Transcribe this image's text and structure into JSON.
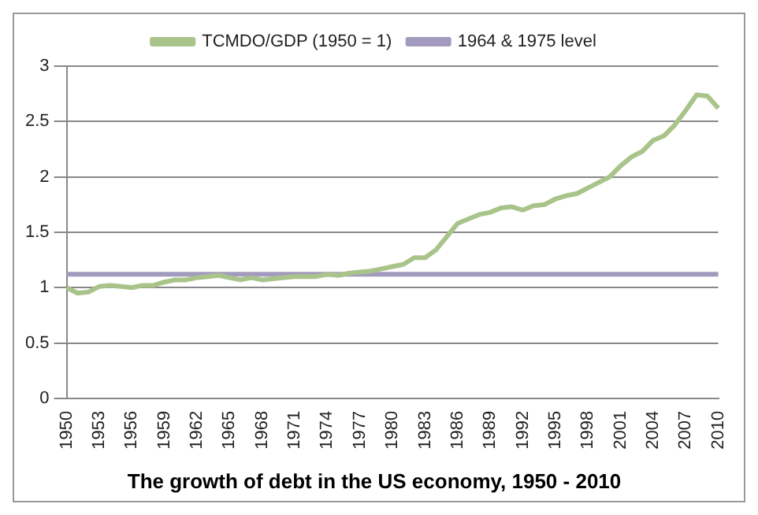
{
  "chart_data": {
    "type": "line",
    "title": "The growth of debt in the US economy, 1950 - 2010",
    "categories": [
      "1950",
      null,
      null,
      "1953",
      null,
      null,
      "1956",
      null,
      null,
      "1959",
      null,
      null,
      "1962",
      null,
      null,
      "1965",
      null,
      null,
      "1968",
      null,
      null,
      "1971",
      null,
      null,
      "1974",
      null,
      null,
      "1977",
      null,
      null,
      "1980",
      null,
      null,
      "1983",
      null,
      null,
      "1986",
      null,
      null,
      "1989",
      null,
      null,
      "1992",
      null,
      null,
      "1995",
      null,
      null,
      "1998",
      null,
      null,
      "2001",
      null,
      null,
      "2004",
      null,
      null,
      "2007",
      null,
      null,
      "2010"
    ],
    "series": [
      {
        "name": "TCMDO/GDP (1950 = 1)",
        "color": "#a9c48a",
        "values": [
          1.0,
          0.95,
          0.96,
          1.01,
          1.02,
          1.01,
          1.0,
          1.02,
          1.02,
          1.05,
          1.07,
          1.07,
          1.09,
          1.1,
          1.11,
          1.09,
          1.07,
          1.09,
          1.07,
          1.08,
          1.09,
          1.1,
          1.1,
          1.1,
          1.12,
          1.11,
          1.13,
          1.14,
          1.15,
          1.17,
          1.19,
          1.21,
          1.27,
          1.27,
          1.34,
          1.46,
          1.58,
          1.62,
          1.66,
          1.68,
          1.72,
          1.73,
          1.7,
          1.74,
          1.75,
          1.8,
          1.83,
          1.85,
          1.9,
          1.95,
          2.0,
          2.1,
          2.18,
          2.23,
          2.33,
          2.37,
          2.47,
          2.6,
          2.74,
          2.73,
          2.62
        ]
      },
      {
        "name": "1964 & 1975 level",
        "color": "#a39bbd",
        "values": [
          1.12,
          1.12,
          1.12,
          1.12,
          1.12,
          1.12,
          1.12,
          1.12,
          1.12,
          1.12,
          1.12,
          1.12,
          1.12,
          1.12,
          1.12,
          1.12,
          1.12,
          1.12,
          1.12,
          1.12,
          1.12,
          1.12,
          1.12,
          1.12,
          1.12,
          1.12,
          1.12,
          1.12,
          1.12,
          1.12,
          1.12,
          1.12,
          1.12,
          1.12,
          1.12,
          1.12,
          1.12,
          1.12,
          1.12,
          1.12,
          1.12,
          1.12,
          1.12,
          1.12,
          1.12,
          1.12,
          1.12,
          1.12,
          1.12,
          1.12,
          1.12,
          1.12,
          1.12,
          1.12,
          1.12,
          1.12,
          1.12,
          1.12,
          1.12,
          1.12,
          1.12
        ]
      }
    ],
    "ylim": [
      0,
      3
    ],
    "yticks": [
      0,
      0.5,
      1,
      1.5,
      2,
      2.5,
      3
    ],
    "grid": "y",
    "legend": "top",
    "marker": "none",
    "line_style": "solid"
  }
}
